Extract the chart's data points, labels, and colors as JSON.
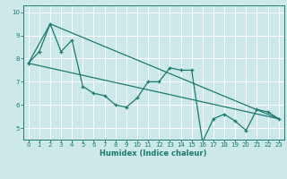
{
  "xlabel": "Humidex (Indice chaleur)",
  "xlim": [
    -0.5,
    23.5
  ],
  "ylim": [
    4.5,
    10.3
  ],
  "yticks": [
    5,
    6,
    7,
    8,
    9,
    10
  ],
  "xticks": [
    0,
    1,
    2,
    3,
    4,
    5,
    6,
    7,
    8,
    9,
    10,
    11,
    12,
    13,
    14,
    15,
    16,
    17,
    18,
    19,
    20,
    21,
    22,
    23
  ],
  "background_color": "#cce8e8",
  "grid_color": "#ffffff",
  "line_color": "#1a7a6e",
  "line1_x": [
    0,
    1,
    2,
    3,
    4,
    5,
    6,
    7,
    8,
    9,
    10,
    11,
    12,
    13,
    14,
    15,
    16,
    17,
    18,
    19,
    20,
    21,
    22,
    23
  ],
  "line1_y": [
    7.8,
    8.3,
    9.5,
    8.3,
    8.8,
    6.8,
    6.5,
    6.4,
    6.0,
    5.9,
    6.3,
    7.0,
    7.0,
    7.6,
    7.5,
    7.5,
    4.4,
    5.4,
    5.6,
    5.3,
    4.9,
    5.8,
    5.7,
    5.4
  ],
  "line2_x": [
    0,
    23
  ],
  "line2_y": [
    7.8,
    5.4
  ],
  "line3_x": [
    0,
    2,
    23
  ],
  "line3_y": [
    7.8,
    9.5,
    5.4
  ]
}
